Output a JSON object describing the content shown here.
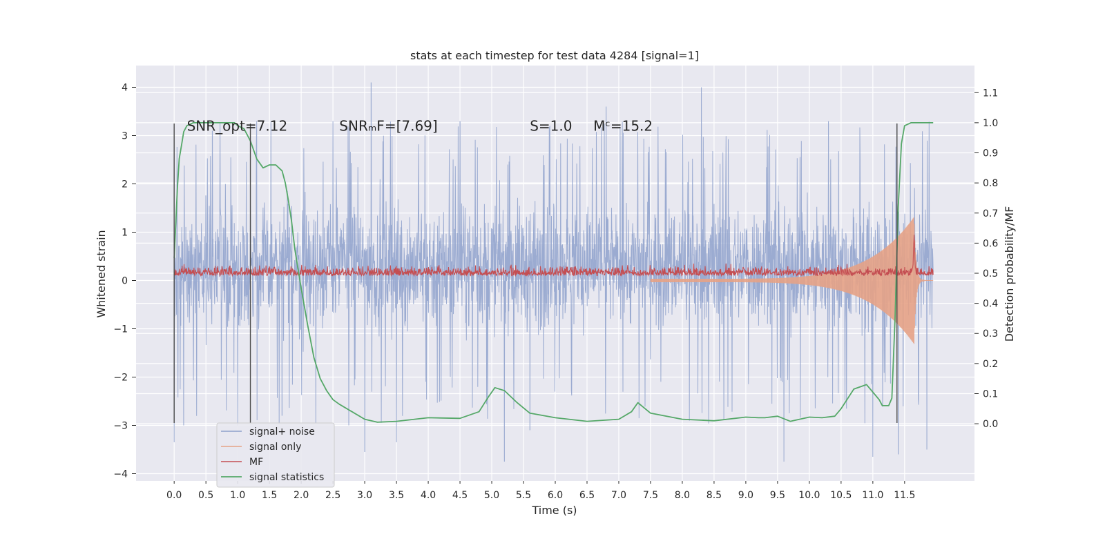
{
  "chart_data": {
    "type": "line",
    "title": "stats at each timestep for test data 4284 [signal=1]",
    "xlabel": "Time (s)",
    "ylabel": "Whitened strain",
    "y2label": "Detection probability/MF",
    "xlim": [
      -0.6,
      12.6
    ],
    "ylim": [
      -4.15,
      4.45
    ],
    "y2lim": [
      -0.19,
      1.19
    ],
    "x_ticks": [
      0.0,
      0.5,
      1.0,
      1.5,
      2.0,
      2.5,
      3.0,
      3.5,
      4.0,
      4.5,
      5.0,
      5.5,
      6.0,
      6.5,
      7.0,
      7.5,
      8.0,
      8.5,
      9.0,
      9.5,
      10.0,
      10.5,
      11.0,
      11.5
    ],
    "x_tick_labels": [
      "0.0",
      "0.5",
      "1.0",
      "1.5",
      "2.0",
      "2.5",
      "3.0",
      "3.5",
      "4.0",
      "4.5",
      "5.0",
      "5.5",
      "6.0",
      "6.5",
      "7.0",
      "7.5",
      "8.0",
      "8.5",
      "9.0",
      "9.5",
      "10.0",
      "10.5",
      "11.0",
      "11.5"
    ],
    "y_ticks": [
      -4,
      -3,
      -2,
      -1,
      0,
      1,
      2,
      3,
      4
    ],
    "y_tick_labels": [
      "−4",
      "−3",
      "−2",
      "−1",
      "0",
      "1",
      "2",
      "3",
      "4"
    ],
    "y2_ticks": [
      0.0,
      0.1,
      0.2,
      0.3,
      0.4,
      0.5,
      0.6,
      0.7,
      0.8,
      0.9,
      1.0,
      1.1
    ],
    "y2_tick_labels": [
      "0.0",
      "0.1",
      "0.2",
      "0.3",
      "0.4",
      "0.5",
      "0.6",
      "0.7",
      "0.8",
      "0.9",
      "1.0",
      "1.1"
    ],
    "grid": true,
    "legend_position": "lower-left",
    "annotations": [
      {
        "text": "SNR_opt=7.12",
        "x": 0.2
      },
      {
        "text": "SNRₘF=[7.69]",
        "x": 2.6
      },
      {
        "text": "S=1.0",
        "x": 5.6
      },
      {
        "text": "Mᶜ=15.2",
        "x": 6.6
      }
    ],
    "annotation_y": 3.2,
    "vertical_markers": [
      {
        "x": 0.0,
        "ymin": -2.95,
        "ymax": 3.25
      },
      {
        "x": 1.2,
        "ymin": -2.95,
        "ymax": 3.25
      },
      {
        "x": 11.38,
        "ymin": -2.95,
        "ymax": 3.25
      }
    ],
    "series": [
      {
        "name": "signal+ noise",
        "color": "#8da0cb",
        "axis": "left",
        "x_range": [
          0.0,
          11.95
        ],
        "typical_envelope": [
          -1.7,
          2.3
        ],
        "peaks": [
          {
            "x": 0.0,
            "y": -3.35
          },
          {
            "x": 0.15,
            "y": -3.0
          },
          {
            "x": 0.6,
            "y": 3.1
          },
          {
            "x": 1.0,
            "y": -3.0
          },
          {
            "x": 1.3,
            "y": 3.3
          },
          {
            "x": 1.7,
            "y": -2.8
          },
          {
            "x": 2.5,
            "y": 3.3
          },
          {
            "x": 2.75,
            "y": -3.0
          },
          {
            "x": 3.1,
            "y": 4.1
          },
          {
            "x": 3.0,
            "y": -3.55
          },
          {
            "x": 3.5,
            "y": -3.35
          },
          {
            "x": 4.5,
            "y": 3.3
          },
          {
            "x": 5.2,
            "y": -3.75
          },
          {
            "x": 5.6,
            "y": -3.1
          },
          {
            "x": 6.8,
            "y": 3.6
          },
          {
            "x": 8.3,
            "y": 4.0
          },
          {
            "x": 9.6,
            "y": -3.75
          },
          {
            "x": 10.3,
            "y": 3.3
          },
          {
            "x": 11.0,
            "y": -3.65
          },
          {
            "x": 11.4,
            "y": -3.6
          },
          {
            "x": 11.85,
            "y": -3.5
          }
        ]
      },
      {
        "name": "signal only",
        "color": "#e5a286",
        "axis": "left",
        "description_values": {
          "chirp_start_x": 7.5,
          "chirp_peak_x": 11.65,
          "chirp_max_amplitude": 1.55,
          "chirp_end_x": 11.95
        }
      },
      {
        "name": "MF",
        "color": "#c44e52",
        "axis": "left",
        "x_range": [
          0.0,
          11.95
        ],
        "baseline": 0.1,
        "typical_max": 0.4,
        "spike": {
          "x": 11.65,
          "y": 1.0
        }
      },
      {
        "name": "signal statistics",
        "color": "#55a868",
        "axis": "right",
        "x": [
          0.0,
          0.05,
          0.08,
          0.12,
          0.15,
          0.2,
          0.3,
          0.5,
          0.8,
          0.95,
          1.0,
          1.1,
          1.2,
          1.3,
          1.4,
          1.5,
          1.6,
          1.7,
          1.75,
          1.8,
          1.85,
          1.9,
          2.0,
          2.1,
          2.2,
          2.3,
          2.4,
          2.5,
          2.6,
          2.8,
          3.0,
          3.2,
          3.5,
          4.0,
          4.5,
          4.8,
          4.95,
          5.05,
          5.2,
          5.4,
          5.6,
          6.0,
          6.5,
          7.0,
          7.2,
          7.3,
          7.5,
          8.0,
          8.5,
          9.0,
          9.2,
          9.3,
          9.5,
          9.7,
          10.0,
          10.2,
          10.4,
          10.5,
          10.7,
          10.9,
          11.1,
          11.15,
          11.2,
          11.25,
          11.3,
          11.35,
          11.4,
          11.45,
          11.5,
          11.6,
          11.8,
          11.95
        ],
        "y": [
          0.55,
          0.78,
          0.88,
          0.93,
          0.97,
          0.99,
          1.0,
          1.0,
          1.0,
          1.0,
          0.99,
          0.98,
          0.94,
          0.88,
          0.85,
          0.86,
          0.86,
          0.84,
          0.8,
          0.74,
          0.67,
          0.58,
          0.45,
          0.33,
          0.22,
          0.15,
          0.11,
          0.08,
          0.065,
          0.04,
          0.015,
          0.005,
          0.008,
          0.02,
          0.018,
          0.04,
          0.09,
          0.12,
          0.11,
          0.07,
          0.035,
          0.02,
          0.008,
          0.015,
          0.04,
          0.07,
          0.035,
          0.015,
          0.01,
          0.022,
          0.02,
          0.02,
          0.025,
          0.008,
          0.022,
          0.02,
          0.025,
          0.05,
          0.115,
          0.13,
          0.08,
          0.06,
          0.06,
          0.06,
          0.085,
          0.35,
          0.72,
          0.93,
          0.99,
          1.0,
          1.0,
          1.0
        ]
      }
    ]
  }
}
